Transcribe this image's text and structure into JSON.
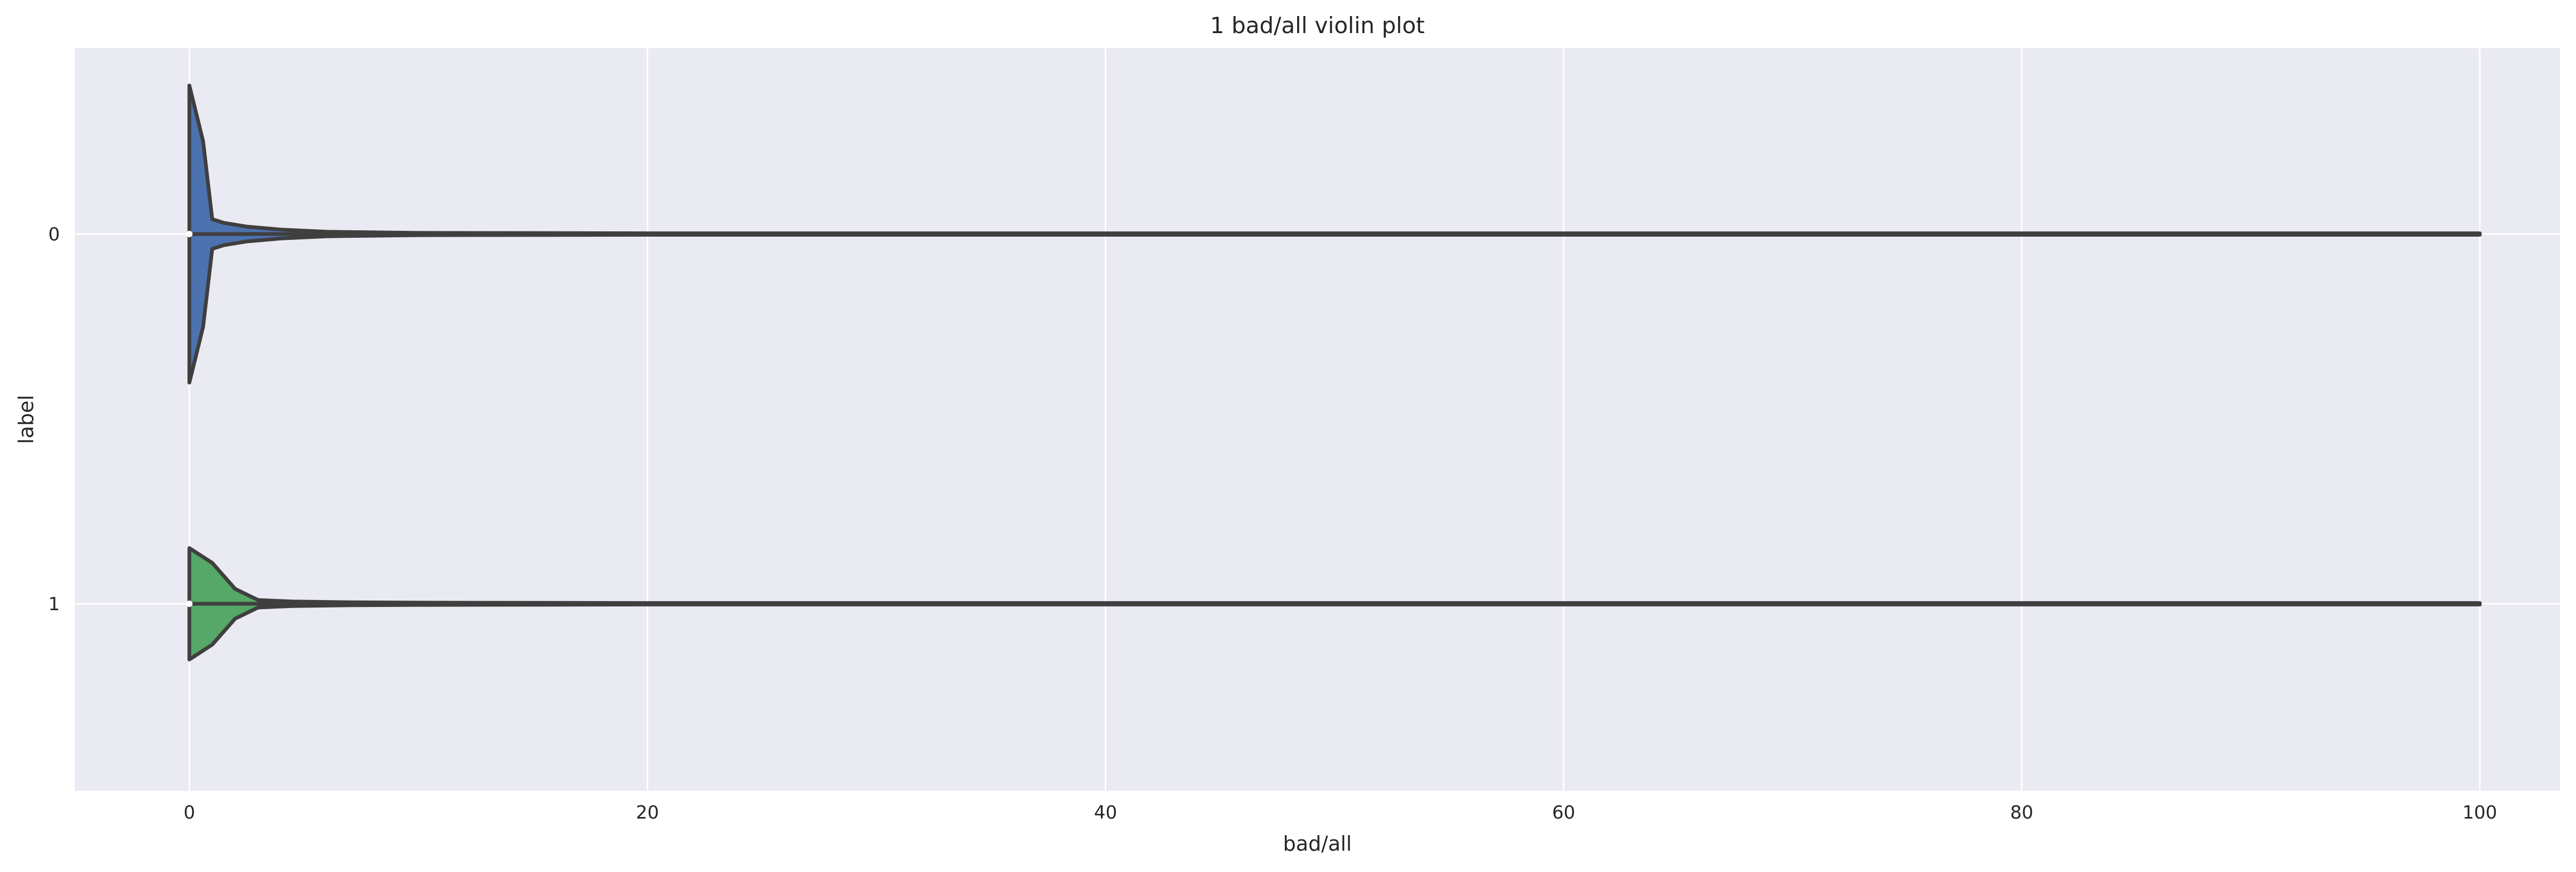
{
  "chart_data": {
    "type": "violin",
    "title": "1 bad/all violin plot",
    "xlabel": "bad/all",
    "ylabel": "label",
    "xlim": [
      -5,
      103.5
    ],
    "xticks": [
      0,
      20,
      40,
      60,
      80,
      100
    ],
    "xtick_labels": [
      "0",
      "20",
      "40",
      "60",
      "80",
      "100"
    ],
    "categories": [
      "0",
      "1"
    ],
    "grid": true,
    "colors": {
      "background": "#eaeaf2",
      "grid": "#ffffff",
      "outline": "#3f3f3f",
      "series": [
        "#4c72b0",
        "#55a868"
      ]
    },
    "series": [
      {
        "category": "0",
        "median": 0,
        "min": 0,
        "max": 100,
        "density_profile": [
          [
            0,
            0.4
          ],
          [
            0.6,
            0.25
          ],
          [
            1.0,
            0.04
          ],
          [
            1.5,
            0.03
          ],
          [
            2.5,
            0.02
          ],
          [
            4,
            0.012
          ],
          [
            6,
            0.006
          ],
          [
            10,
            0.003
          ],
          [
            20,
            0.002
          ],
          [
            40,
            0.002
          ],
          [
            60,
            0.002
          ],
          [
            80,
            0.002
          ],
          [
            100,
            0.002
          ]
        ]
      },
      {
        "category": "1",
        "median": 0,
        "min": 0,
        "max": 100,
        "density_profile": [
          [
            0,
            0.15
          ],
          [
            1.0,
            0.11
          ],
          [
            2.0,
            0.04
          ],
          [
            3.0,
            0.01
          ],
          [
            4.5,
            0.006
          ],
          [
            7,
            0.004
          ],
          [
            10,
            0.003
          ],
          [
            20,
            0.002
          ],
          [
            40,
            0.002
          ],
          [
            60,
            0.002
          ],
          [
            80,
            0.002
          ],
          [
            100,
            0.002
          ]
        ]
      }
    ]
  }
}
